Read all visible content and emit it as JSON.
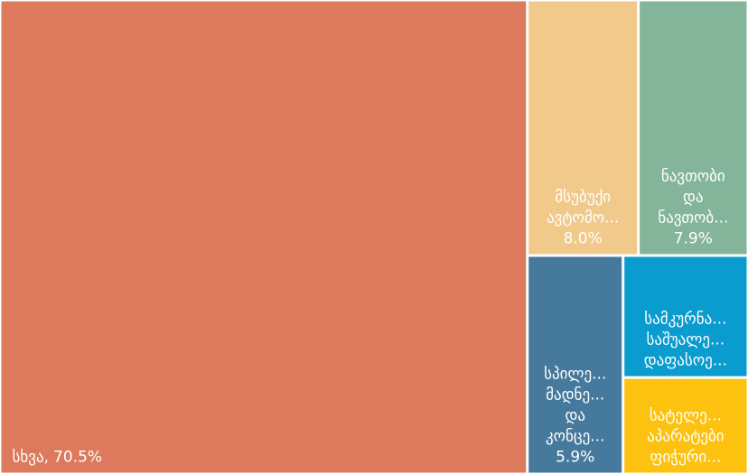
{
  "chart_data": {
    "type": "treemap",
    "categories": [
      [
        "სხვა,"
      ],
      [
        "მსუბუქი",
        "ავტომო..."
      ],
      [
        "ნავთობი",
        "და",
        "ნავთობ..."
      ],
      [
        "სპილე...",
        "მადნე...",
        "და",
        "კონცე..."
      ],
      [
        "სამკურნა...",
        "საშუალე...",
        "დაფასოე..."
      ],
      [
        "სატელე...",
        "აპარატები",
        "ფიჭური..."
      ]
    ],
    "values": [
      70.5,
      8.0,
      7.9,
      5.9,
      4.3,
      3.4
    ],
    "value_labels": [
      "70.5%",
      "8.0%",
      "7.9%",
      "5.9%",
      null,
      null
    ],
    "colors": [
      "#dd7a5d",
      "#f0c98b",
      "#84b59a",
      "#467a9c",
      "#0a9ccf",
      "#fdc20f"
    ]
  }
}
